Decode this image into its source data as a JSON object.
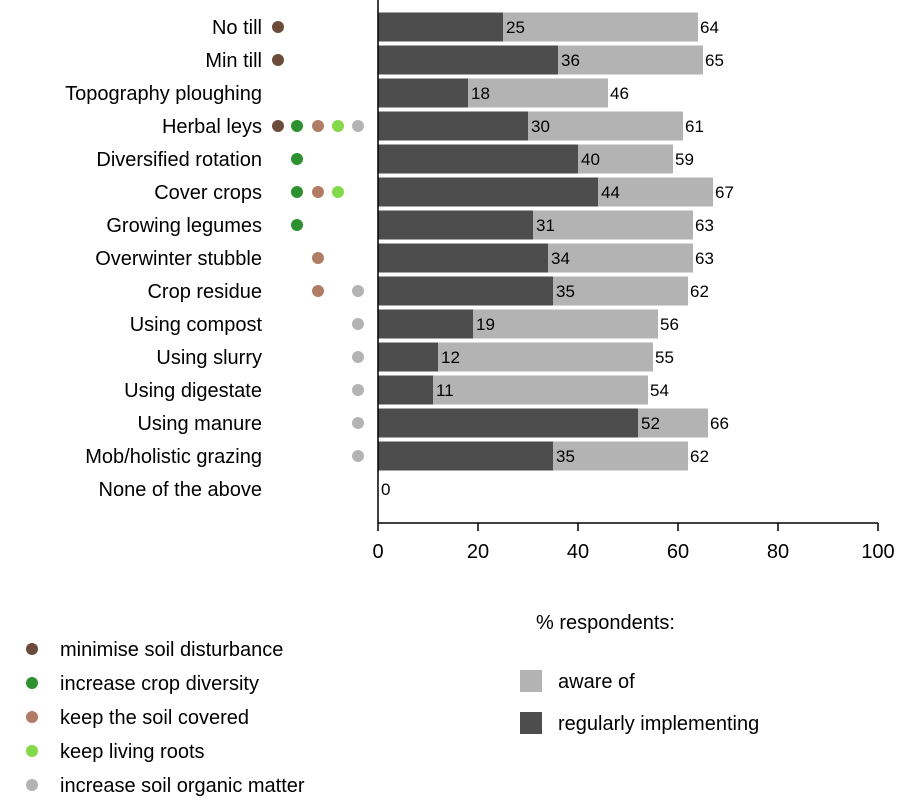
{
  "chart_data": {
    "type": "bar",
    "orientation": "horizontal",
    "layout": "overlaid",
    "categories": [
      "No till",
      "Min till",
      "Topography ploughing",
      "Herbal leys",
      "Diversified rotation",
      "Cover crops",
      "Growing legumes",
      "Overwinter stubble",
      "Crop residue",
      "Using compost",
      "Using slurry",
      "Using digestate",
      "Using manure",
      "Mob/holistic grazing",
      "None of the above"
    ],
    "series": [
      {
        "name": "aware of",
        "color": "#b3b3b3",
        "values": [
          64,
          65,
          46,
          61,
          59,
          67,
          63,
          63,
          62,
          56,
          55,
          54,
          66,
          62,
          null
        ]
      },
      {
        "name": "regularly implementing",
        "color": "#4d4d4d",
        "values": [
          25,
          36,
          18,
          30,
          40,
          44,
          31,
          34,
          35,
          19,
          12,
          11,
          52,
          35,
          0
        ]
      }
    ],
    "x_ticks": [
      "0",
      "20",
      "40",
      "60",
      "80",
      "100"
    ],
    "xlim": [
      0,
      100
    ],
    "xlabel": "",
    "grid": false,
    "legend_title": "% respondents:",
    "legend_position": "bottom-right",
    "principle_legend": [
      {
        "key": "disturbance",
        "label": "minimise soil disturbance",
        "color": "#6b4c3b"
      },
      {
        "key": "diversity",
        "label": "increase crop diversity",
        "color": "#2e9130"
      },
      {
        "key": "covered",
        "label": "keep the soil covered",
        "color": "#b07d64"
      },
      {
        "key": "roots",
        "label": "keep living roots",
        "color": "#84d94b"
      },
      {
        "key": "organic",
        "label": "increase soil organic matter",
        "color": "#b3b3b3"
      }
    ],
    "principles_by_category": [
      [
        "disturbance"
      ],
      [
        "disturbance"
      ],
      [],
      [
        "disturbance",
        "diversity",
        "covered",
        "roots",
        "organic"
      ],
      [
        "diversity"
      ],
      [
        "diversity",
        "covered",
        "roots"
      ],
      [
        "diversity"
      ],
      [
        "covered"
      ],
      [
        "covered",
        "organic"
      ],
      [
        "organic"
      ],
      [
        "organic"
      ],
      [
        "organic"
      ],
      [
        "organic"
      ],
      [
        "organic"
      ],
      []
    ]
  }
}
